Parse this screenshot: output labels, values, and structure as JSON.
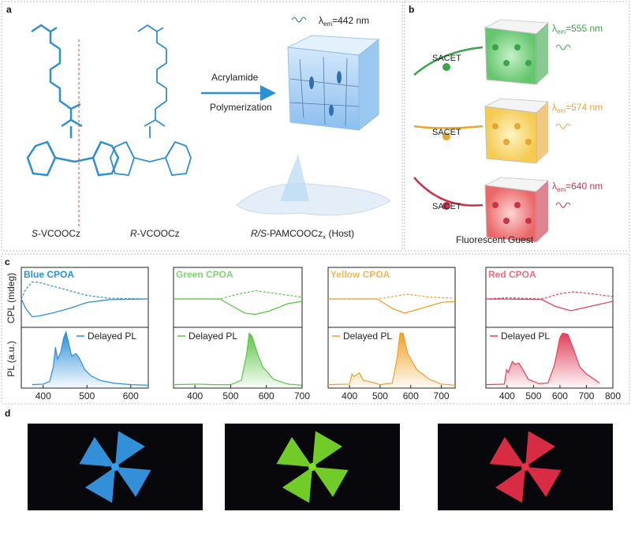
{
  "panel_a": {
    "label": "a",
    "s_name_prefix": "S",
    "s_name": "-VCOOCz",
    "r_name_prefix": "R",
    "r_name": "-VCOOCz",
    "host_prefix": "R/S",
    "host_name": "-PAMCOOCz",
    "host_sub": "x",
    "host_suffix": " (Host)",
    "arrow_top": "Acrylamide",
    "arrow_bottom": "Polymerization",
    "emission": "=442 nm",
    "lambda": "λ",
    "em": "em"
  },
  "panel_b": {
    "label": "b",
    "caption": "Fluorescent Guest",
    "sacet": "SACET",
    "guests": [
      {
        "emission": "=555 nm",
        "color": "#3aa54a"
      },
      {
        "emission": "=574 nm",
        "color": "#e8a530"
      },
      {
        "emission": "=640 nm",
        "color": "#c8344a"
      }
    ]
  },
  "panel_c": {
    "label": "c",
    "ylabel_top": "CPL (mdeg)",
    "ylabel_bottom": "PL (a.u.)",
    "legend": "Delayed PL"
  },
  "panel_d": {
    "label": "d"
  },
  "chart_data": [
    {
      "type": "line",
      "title": "Blue CPOA",
      "color": "#2d8fd6",
      "xlim": [
        350,
        640
      ],
      "xticks": [
        400,
        500,
        600
      ],
      "cpl": [
        [
          350,
          0
        ],
        [
          360,
          -0.4
        ],
        [
          375,
          -0.75
        ],
        [
          390,
          -0.72
        ],
        [
          420,
          -0.6
        ],
        [
          460,
          -0.4
        ],
        [
          500,
          -0.15
        ],
        [
          550,
          -0.03
        ],
        [
          640,
          0
        ]
      ],
      "cpl_dashed": [
        [
          350,
          0
        ],
        [
          360,
          0.4
        ],
        [
          375,
          0.72
        ],
        [
          390,
          0.7
        ],
        [
          420,
          0.55
        ],
        [
          460,
          0.35
        ],
        [
          500,
          0.15
        ],
        [
          550,
          0.03
        ],
        [
          640,
          0
        ]
      ],
      "pl": [
        [
          375,
          0.02
        ],
        [
          400,
          0.03
        ],
        [
          415,
          0.08
        ],
        [
          423,
          0.35
        ],
        [
          428,
          0.72
        ],
        [
          433,
          0.5
        ],
        [
          440,
          0.62
        ],
        [
          447,
          0.9
        ],
        [
          452,
          1.0
        ],
        [
          458,
          0.8
        ],
        [
          465,
          0.55
        ],
        [
          475,
          0.6
        ],
        [
          482,
          0.52
        ],
        [
          495,
          0.3
        ],
        [
          510,
          0.18
        ],
        [
          530,
          0.1
        ],
        [
          560,
          0.05
        ],
        [
          600,
          0.02
        ],
        [
          640,
          0.01
        ]
      ]
    },
    {
      "type": "line",
      "title": "Green CPOA",
      "color": "#5cc447",
      "xlim": [
        340,
        700
      ],
      "xticks": [
        400,
        500,
        600,
        700
      ],
      "cpl": [
        [
          340,
          0
        ],
        [
          470,
          0
        ],
        [
          510,
          -0.35
        ],
        [
          540,
          -0.6
        ],
        [
          570,
          -0.65
        ],
        [
          610,
          -0.5
        ],
        [
          660,
          -0.2
        ],
        [
          700,
          -0.1
        ]
      ],
      "cpl_dashed": [
        [
          340,
          0
        ],
        [
          470,
          0
        ],
        [
          520,
          0.2
        ],
        [
          570,
          0.35
        ],
        [
          640,
          0.2
        ],
        [
          700,
          0.08
        ]
      ],
      "pl": [
        [
          340,
          0.02
        ],
        [
          410,
          0.03
        ],
        [
          450,
          0.02
        ],
        [
          500,
          0.02
        ],
        [
          530,
          0.1
        ],
        [
          545,
          0.6
        ],
        [
          552,
          0.98
        ],
        [
          560,
          0.92
        ],
        [
          575,
          0.6
        ],
        [
          590,
          0.35
        ],
        [
          620,
          0.12
        ],
        [
          660,
          0.03
        ],
        [
          700,
          0.01
        ]
      ]
    },
    {
      "type": "line",
      "title": "Yellow CPOA",
      "color": "#eea028",
      "xlim": [
        330,
        745
      ],
      "xticks": [
        400,
        500,
        600,
        700
      ],
      "cpl": [
        [
          330,
          0
        ],
        [
          490,
          0
        ],
        [
          540,
          -0.4
        ],
        [
          580,
          -0.6
        ],
        [
          620,
          -0.45
        ],
        [
          700,
          -0.15
        ],
        [
          745,
          -0.1
        ]
      ],
      "cpl_dashed": [
        [
          330,
          0
        ],
        [
          490,
          0
        ],
        [
          590,
          0.2
        ],
        [
          660,
          0.08
        ],
        [
          745,
          0.03
        ]
      ],
      "pl": [
        [
          330,
          0.02
        ],
        [
          400,
          0.03
        ],
        [
          408,
          0.22
        ],
        [
          414,
          0.17
        ],
        [
          432,
          0.24
        ],
        [
          445,
          0.1
        ],
        [
          470,
          0.07
        ],
        [
          500,
          0.02
        ],
        [
          540,
          0.05
        ],
        [
          555,
          0.5
        ],
        [
          565,
          0.98
        ],
        [
          575,
          0.98
        ],
        [
          590,
          0.6
        ],
        [
          620,
          0.3
        ],
        [
          660,
          0.12
        ],
        [
          700,
          0.03
        ],
        [
          745,
          0.01
        ]
      ]
    },
    {
      "type": "line",
      "title": "Red CPOA",
      "color": "#e0405a",
      "xlim": [
        320,
        800
      ],
      "xticks": [
        400,
        500,
        600,
        700,
        800
      ],
      "cpl": [
        [
          320,
          0
        ],
        [
          530,
          -0.02
        ],
        [
          580,
          -0.3
        ],
        [
          640,
          -0.5
        ],
        [
          700,
          -0.35
        ],
        [
          800,
          -0.1
        ]
      ],
      "cpl_dashed": [
        [
          320,
          0
        ],
        [
          400,
          0.05
        ],
        [
          530,
          0
        ],
        [
          600,
          0.22
        ],
        [
          650,
          0.3
        ],
        [
          720,
          0.22
        ],
        [
          800,
          0.1
        ]
      ],
      "pl": [
        [
          320,
          0.02
        ],
        [
          390,
          0.03
        ],
        [
          398,
          0.3
        ],
        [
          405,
          0.25
        ],
        [
          420,
          0.45
        ],
        [
          430,
          0.4
        ],
        [
          445,
          0.42
        ],
        [
          460,
          0.3
        ],
        [
          480,
          0.12
        ],
        [
          520,
          0.04
        ],
        [
          555,
          0.05
        ],
        [
          580,
          0.4
        ],
        [
          600,
          0.9
        ],
        [
          610,
          0.98
        ],
        [
          630,
          0.96
        ],
        [
          650,
          0.7
        ],
        [
          675,
          0.35
        ],
        [
          700,
          0.22
        ],
        [
          730,
          0.12
        ],
        [
          750,
          0.05
        ]
      ]
    }
  ],
  "photos": [
    {
      "color": "#3a9ef0"
    },
    {
      "color": "#7ee22a"
    },
    {
      "color": "#f0304a"
    }
  ]
}
